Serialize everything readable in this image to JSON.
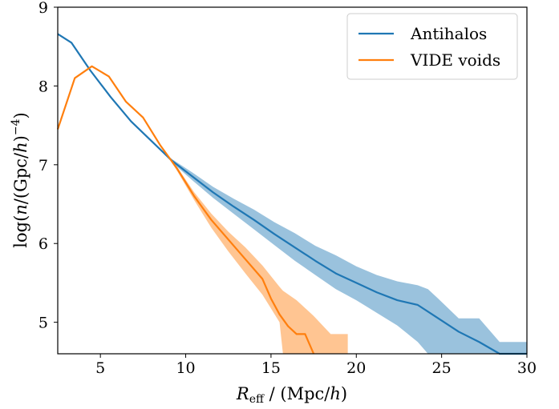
{
  "chart_data": {
    "type": "line",
    "title": "",
    "xlabel_main": "R",
    "xlabel_sub": "eff",
    "xlabel_rest": " / (Mpc/",
    "xlabel_h": "h",
    "xlabel_end": ")",
    "ylabel_pre": "log(",
    "ylabel_n": "n",
    "ylabel_mid": "/(Gpc/",
    "ylabel_h": "h",
    "ylabel_post": ")",
    "ylabel_exp": "−4",
    "ylabel_end": ")",
    "xlim": [
      2.5,
      30
    ],
    "ylim": [
      4.6,
      9
    ],
    "xticks": [
      5,
      10,
      15,
      20,
      25,
      30
    ],
    "yticks": [
      5,
      6,
      7,
      8,
      9
    ],
    "xtick_labels": [
      "5",
      "10",
      "15",
      "20",
      "25",
      "30"
    ],
    "ytick_labels": [
      "5",
      "6",
      "7",
      "8",
      "9"
    ],
    "legend_position": "top-right",
    "grid": false,
    "series": [
      {
        "name": "Antihalos",
        "color": "#1f77b4",
        "x": [
          2.5,
          3.3,
          4.4,
          5.6,
          6.8,
          8.0,
          9.2,
          10.4,
          11.6,
          12.8,
          14.0,
          15.2,
          16.4,
          17.6,
          18.8,
          20.0,
          21.2,
          22.4,
          23.6,
          24.8,
          26.0,
          27.2,
          28.4,
          29.6,
          30.0
        ],
        "y": [
          8.66,
          8.55,
          8.2,
          7.86,
          7.55,
          7.3,
          7.05,
          6.85,
          6.65,
          6.47,
          6.3,
          6.12,
          5.95,
          5.78,
          5.62,
          5.5,
          5.38,
          5.28,
          5.22,
          5.05,
          4.88,
          4.75,
          4.6,
          4.6,
          4.6
        ],
        "band_x": [
          2.5,
          3.3,
          4.4,
          5.6,
          6.8,
          8.0,
          9.2,
          10.4,
          11.6,
          12.8,
          14.0,
          15.2,
          16.4,
          17.6,
          18.8,
          20.0,
          21.2,
          22.4,
          23.6,
          24.2,
          24.8,
          26.0,
          27.2,
          28.4,
          29.6,
          30.0
        ],
        "band_upper": [
          8.66,
          8.55,
          8.2,
          7.86,
          7.55,
          7.3,
          7.07,
          6.9,
          6.72,
          6.57,
          6.43,
          6.27,
          6.13,
          5.97,
          5.85,
          5.71,
          5.6,
          5.52,
          5.47,
          5.42,
          5.3,
          5.05,
          5.05,
          4.75,
          4.75,
          4.75
        ],
        "band_lower": [
          8.66,
          8.55,
          8.2,
          7.86,
          7.55,
          7.3,
          7.03,
          6.8,
          6.58,
          6.38,
          6.18,
          5.98,
          5.78,
          5.6,
          5.42,
          5.28,
          5.12,
          4.96,
          4.75,
          4.6,
          4.6,
          4.6,
          4.6,
          4.6,
          4.6,
          4.6
        ]
      },
      {
        "name": "VIDE voids",
        "color": "#ff7f0e",
        "x": [
          2.5,
          3.5,
          4.5,
          5.5,
          6.5,
          7.5,
          8.5,
          9.5,
          10.5,
          11.5,
          12.5,
          13.5,
          14.5,
          15.0,
          15.5,
          16.0,
          16.5,
          17.0,
          17.5
        ],
        "y": [
          7.45,
          8.1,
          8.25,
          8.12,
          7.8,
          7.6,
          7.25,
          6.95,
          6.6,
          6.3,
          6.05,
          5.8,
          5.55,
          5.3,
          5.1,
          4.95,
          4.85,
          4.85,
          4.6
        ],
        "band_x": [
          2.5,
          3.5,
          4.5,
          5.5,
          6.5,
          7.5,
          8.5,
          9.5,
          10.5,
          11.5,
          12.5,
          13.5,
          14.5,
          15.5,
          15.7,
          16.5,
          17.5,
          18.5,
          19.5
        ],
        "band_upper": [
          7.45,
          8.1,
          8.25,
          8.12,
          7.8,
          7.6,
          7.25,
          6.97,
          6.65,
          6.38,
          6.15,
          5.95,
          5.72,
          5.45,
          5.4,
          5.28,
          5.08,
          4.85,
          4.85
        ],
        "band_lower": [
          7.45,
          8.1,
          8.25,
          8.12,
          7.8,
          7.6,
          7.25,
          6.92,
          6.55,
          6.2,
          5.9,
          5.62,
          5.35,
          5.0,
          4.6,
          4.6,
          4.6,
          4.6,
          4.6
        ]
      }
    ]
  }
}
